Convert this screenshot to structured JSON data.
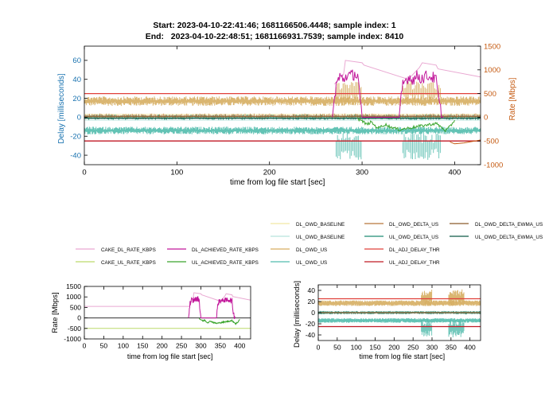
{
  "title": {
    "line1": "Start: 2023-04-10-22:41:46; 1681166506.4448; sample index: 1",
    "line2": "End:   2023-04-10-22:48:51; 1681166931.7539; sample index: 8410"
  },
  "colors": {
    "cake_dl": "#e9a8d2",
    "cake_ul": "#bcd96a",
    "dl_achieved": "#c2189b",
    "ul_achieved": "#3aa52c",
    "dl_owd_baseline": "#f2e6a5",
    "ul_owd_baseline": "#b8e3dc",
    "dl_owd_us": "#d6ae62",
    "ul_owd_us": "#52bcad",
    "dl_owd_delta_us": "#b8763a",
    "ul_owd_delta_us": "#1f8c73",
    "dl_owd_delta_ewma_us": "#8b5a2b",
    "ul_owd_delta_ewma_us": "#0e5a48",
    "dl_adj_delay_thr": "#e0403a",
    "ul_adj_delay_thr": "#c01a24",
    "left_axis": "#1a73b0",
    "right_axis": "#c55a11"
  },
  "chart_data": [
    {
      "id": "main",
      "type": "line",
      "xlabel": "time from log file start [sec]",
      "ylabel": "Delay [milliseconds]",
      "y2label": "Rate [Mbps]",
      "xlim": [
        0,
        428
      ],
      "ylim": [
        -50,
        75
      ],
      "y2lim": [
        -1000,
        1500
      ],
      "xticks": [
        0,
        100,
        200,
        300,
        400
      ],
      "yticks": [
        -40,
        -20,
        0,
        20,
        40,
        60
      ],
      "y2ticks": [
        -1000,
        -500,
        0,
        500,
        1000,
        1500
      ],
      "grid": false,
      "delay_series": {
        "dl_owd_us_band": [
          12,
          22
        ],
        "ul_owd_us_band": [
          -18,
          -10
        ],
        "dl_adj_delay_thr": 25,
        "ul_adj_delay_thr": -25,
        "dl_owd_delta_ewma_us": 1,
        "ul_owd_delta_ewma_us": -1
      },
      "rate_series": {
        "cake_dl_rate_kbps": {
          "x": [
            270,
            280,
            282,
            300,
            302,
            350,
            362,
            365,
            380,
            382,
            428
          ],
          "y": [
            700,
            900,
            1200,
            1150,
            1100,
            800,
            1050,
            1150,
            1100,
            1020,
            850
          ]
        },
        "dl_achieved_rate_kbps": {
          "x": [
            268,
            272,
            276,
            280,
            284,
            288,
            292,
            296,
            298,
            300,
            340,
            344,
            350,
            356,
            360,
            364,
            370,
            376,
            380,
            384,
            388
          ],
          "y": [
            0,
            700,
            850,
            800,
            900,
            870,
            920,
            850,
            300,
            0,
            0,
            700,
            850,
            800,
            880,
            820,
            870,
            850,
            780,
            200,
            0
          ]
        },
        "ul_achieved_rate_kbps": {
          "x": [
            295,
            300,
            305,
            310,
            315,
            318,
            325,
            330,
            340,
            380,
            385,
            390,
            395,
            400
          ],
          "y": [
            -30,
            -80,
            -150,
            -100,
            -200,
            -220,
            -150,
            -200,
            -260,
            -130,
            -200,
            -280,
            -200,
            -60
          ]
        },
        "cake_ul_rate_kbps": {
          "x": [
            395,
            400,
            410,
            428
          ],
          "y": [
            -520,
            -560,
            -540,
            -480
          ]
        }
      }
    },
    {
      "id": "rate-small",
      "type": "line",
      "xlabel": "time from log file start [sec]",
      "ylabel": "Rate [Mbps]",
      "xlim": [
        0,
        428
      ],
      "ylim": [
        -1000,
        1500
      ],
      "xticks": [
        0,
        50,
        100,
        150,
        200,
        250,
        300,
        350,
        400
      ],
      "yticks": [
        -1000,
        -500,
        0,
        500,
        1000,
        1500
      ],
      "grid": false,
      "series": {
        "cake_dl_rate_kbps": {
          "x": [
            0,
            270,
            280,
            282,
            300,
            302,
            350,
            362,
            365,
            380,
            382,
            428
          ],
          "y": [
            550,
            550,
            900,
            1200,
            1150,
            1100,
            800,
            1050,
            1150,
            1100,
            1020,
            850
          ]
        },
        "cake_ul_rate_kbps": {
          "x": [
            0,
            428
          ],
          "y": [
            -500,
            -500
          ]
        },
        "dl_achieved_rate_kbps": {
          "x": [
            268,
            272,
            276,
            280,
            284,
            288,
            292,
            296,
            298,
            300,
            340,
            344,
            350,
            356,
            360,
            364,
            370,
            376,
            380,
            384,
            388
          ],
          "y": [
            0,
            700,
            850,
            800,
            900,
            870,
            920,
            850,
            300,
            0,
            0,
            700,
            850,
            800,
            880,
            820,
            870,
            850,
            780,
            200,
            0
          ]
        },
        "ul_achieved_rate_kbps": {
          "x": [
            295,
            300,
            305,
            310,
            315,
            318,
            325,
            330,
            340,
            380,
            385,
            390,
            395,
            400
          ],
          "y": [
            -30,
            -80,
            -150,
            -100,
            -200,
            -220,
            -150,
            -200,
            -260,
            -130,
            -200,
            -280,
            -200,
            -60
          ]
        }
      }
    },
    {
      "id": "delay-small",
      "type": "line",
      "xlabel": "time from log file start [sec]",
      "ylabel": "Delay [milliseconds]",
      "xlim": [
        0,
        428
      ],
      "ylim": [
        -50,
        50
      ],
      "xticks": [
        0,
        50,
        100,
        150,
        200,
        250,
        300,
        350,
        400
      ],
      "yticks": [
        -40,
        -20,
        0,
        20,
        40
      ],
      "grid": false,
      "series": {
        "dl_owd_us_band": [
          12,
          22
        ],
        "ul_owd_us_band": [
          -18,
          -10
        ],
        "dl_adj_delay_thr": 25,
        "ul_adj_delay_thr": -25
      }
    }
  ],
  "legend": [
    {
      "key": "dl_owd_baseline",
      "label": "DL_OWD_BASELINE"
    },
    {
      "key": "dl_owd_delta_us",
      "label": "DL_OWD_DELTA_US"
    },
    {
      "key": "dl_owd_delta_ewma_us",
      "label": "DL_OWD_DELTA_EWMA_US"
    },
    {
      "key": "ul_owd_baseline",
      "label": "UL_OWD_BASELINE"
    },
    {
      "key": "ul_owd_delta_us",
      "label": "UL_OWD_DELTA_US"
    },
    {
      "key": "ul_owd_delta_ewma_us",
      "label": "UL_OWD_DELTA_EWMA_US"
    },
    {
      "key": "cake_dl",
      "label": "CAKE_DL_RATE_KBPS"
    },
    {
      "key": "dl_achieved",
      "label": "DL_ACHIEVED_RATE_KBPS"
    },
    {
      "key": "dl_owd_us",
      "label": "DL_OWD_US"
    },
    {
      "key": "dl_adj_delay_thr",
      "label": "DL_ADJ_DELAY_THR"
    },
    {
      "key": "cake_ul",
      "label": "CAKE_UL_RATE_KBPS"
    },
    {
      "key": "ul_achieved",
      "label": "UL_ACHIEVED_RATE_KBPS"
    },
    {
      "key": "ul_owd_us",
      "label": "UL_OWD_US"
    },
    {
      "key": "ul_adj_delay_thr",
      "label": "UL_ADJ_DELAY_THR"
    }
  ]
}
